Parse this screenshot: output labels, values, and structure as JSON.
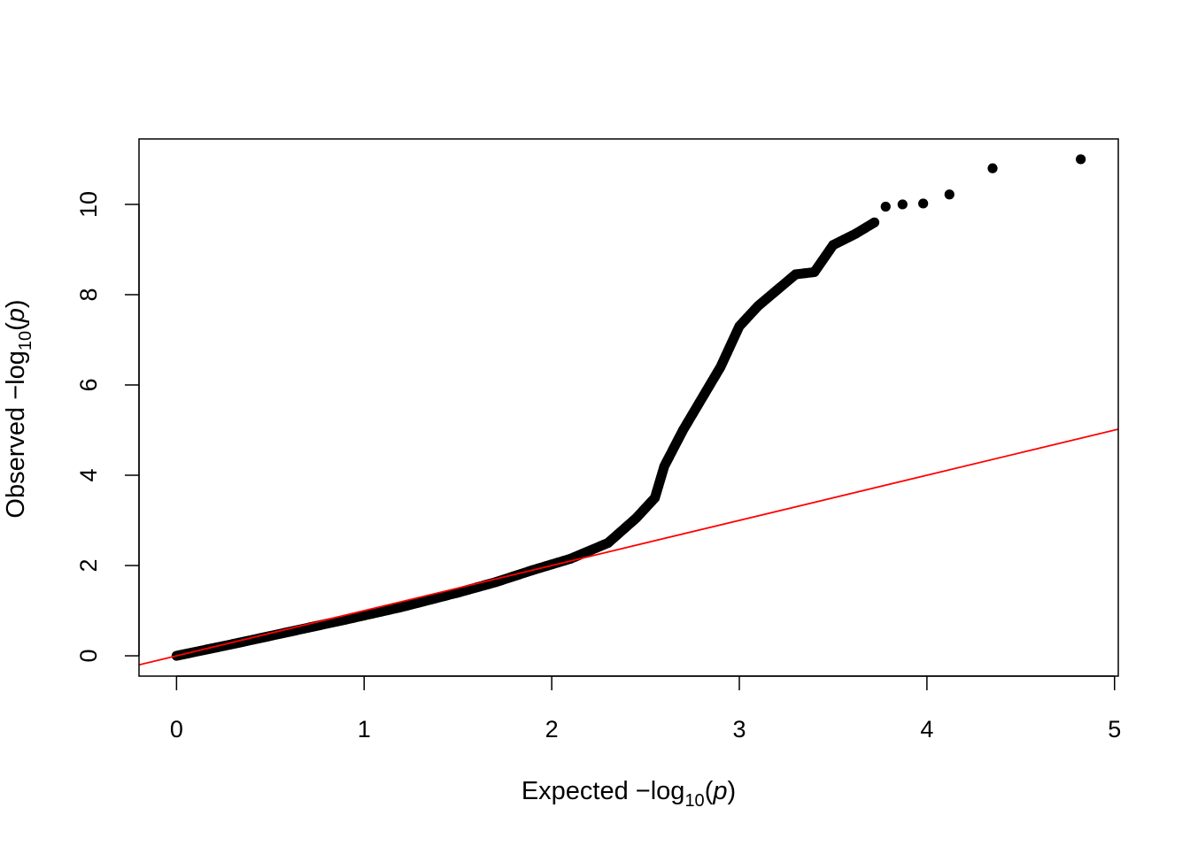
{
  "chart_data": {
    "type": "scatter",
    "title": "",
    "xlabel_parts": {
      "prefix": "Expected  −log",
      "sub": "10",
      "open": "(",
      "var": "p",
      "close": ")"
    },
    "ylabel_parts": {
      "prefix": "Observed  −log",
      "sub": "10",
      "open": "(",
      "var": "p",
      "close": ")"
    },
    "xlim": [
      -0.2,
      5.02
    ],
    "ylim": [
      -0.45,
      11.45
    ],
    "x_ticks": [
      "0",
      "1",
      "2",
      "3",
      "4",
      "5"
    ],
    "y_ticks": [
      "0",
      "2",
      "4",
      "6",
      "8",
      "10"
    ],
    "grid": false,
    "reference_line": {
      "intercept": 0,
      "slope": 1,
      "color": "#ff0000"
    },
    "point_color": "#000000",
    "bulk_curve": [
      [
        0.0,
        0.0
      ],
      [
        0.3,
        0.26
      ],
      [
        0.6,
        0.53
      ],
      [
        0.9,
        0.8
      ],
      [
        1.2,
        1.08
      ],
      [
        1.5,
        1.4
      ],
      [
        1.7,
        1.63
      ],
      [
        1.9,
        1.9
      ],
      [
        2.1,
        2.15
      ],
      [
        2.3,
        2.5
      ],
      [
        2.45,
        3.05
      ],
      [
        2.55,
        3.5
      ],
      [
        2.6,
        4.2
      ],
      [
        2.7,
        5.0
      ],
      [
        2.8,
        5.7
      ],
      [
        2.9,
        6.4
      ],
      [
        3.0,
        7.3
      ],
      [
        3.1,
        7.75
      ],
      [
        3.2,
        8.1
      ],
      [
        3.3,
        8.45
      ],
      [
        3.4,
        8.5
      ],
      [
        3.5,
        9.1
      ],
      [
        3.62,
        9.35
      ],
      [
        3.72,
        9.6
      ]
    ],
    "tail_points": [
      [
        3.78,
        9.95
      ],
      [
        3.87,
        10.0
      ],
      [
        3.98,
        10.02
      ],
      [
        4.12,
        10.22
      ],
      [
        4.35,
        10.8
      ],
      [
        4.82,
        11.0
      ]
    ]
  }
}
